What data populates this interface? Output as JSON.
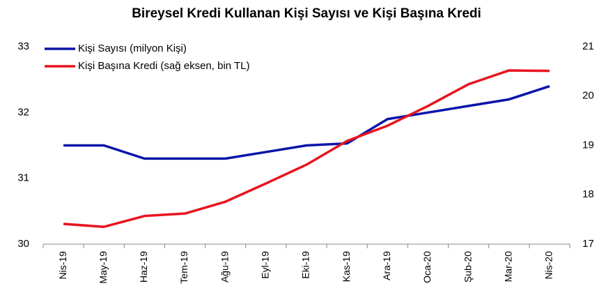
{
  "chart_data": {
    "type": "line",
    "title": "Bireysel Kredi Kullanan Kişi Sayısı ve Kişi Başına Kredi",
    "categories": [
      "Nis-19",
      "May-19",
      "Haz-19",
      "Tem-19",
      "Ağu-19",
      "Eyl-19",
      "Eki-19",
      "Kas-19",
      "Ara-19",
      "Oca-20",
      "Şub-20",
      "Mar-20",
      "Nis-20"
    ],
    "series": [
      {
        "name": "Kişi Sayısı (milyon Kişi)",
        "color": "#0a14a8",
        "values": [
          31.5,
          31.5,
          31.3,
          31.3,
          31.3,
          31.4,
          31.5,
          31.53,
          31.9,
          32.0,
          32.1,
          32.2,
          32.4
        ]
      },
      {
        "name": "Kişi Başına Kredi (sağ eksen, bin TL)",
        "color": "#e8141e",
        "axis": "y2",
        "values": [
          17.41,
          17.35,
          17.57,
          17.62,
          17.86,
          18.23,
          18.61,
          19.09,
          19.4,
          19.8,
          20.24,
          20.52,
          20.51
        ]
      }
    ],
    "ylim": [
      30,
      33
    ],
    "yticks": [
      30,
      31,
      32,
      33
    ],
    "y2lim": [
      17,
      21
    ],
    "y2ticks": [
      17,
      18,
      19,
      20,
      21
    ],
    "grid": false,
    "legend": "top-left"
  }
}
